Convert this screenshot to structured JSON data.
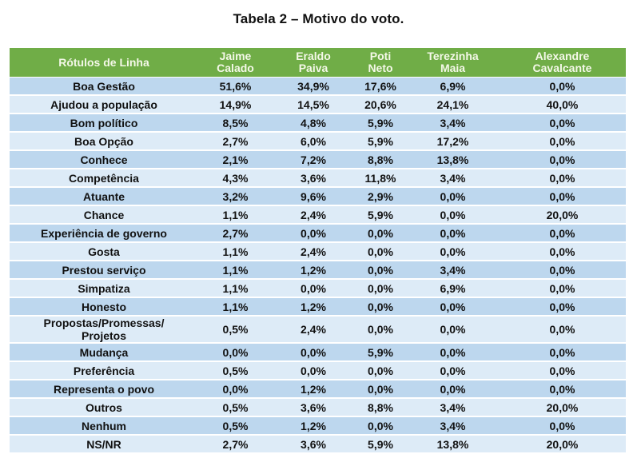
{
  "title": "Tabela 2 – Motivo do voto.",
  "table": {
    "header": {
      "row_label": "Rótulos de Linha",
      "columns": [
        [
          "Jaime",
          "Calado"
        ],
        [
          "Eraldo",
          "Paiva"
        ],
        [
          "Poti",
          "Neto"
        ],
        [
          "Terezinha",
          "Maia"
        ],
        [
          "Alexandre",
          "Cavalcante"
        ]
      ]
    },
    "rows": [
      {
        "label": "Boa Gestão",
        "values": [
          "51,6%",
          "34,9%",
          "17,6%",
          "6,9%",
          "0,0%"
        ]
      },
      {
        "label": "Ajudou a população",
        "values": [
          "14,9%",
          "14,5%",
          "20,6%",
          "24,1%",
          "40,0%"
        ]
      },
      {
        "label": "Bom político",
        "values": [
          "8,5%",
          "4,8%",
          "5,9%",
          "3,4%",
          "0,0%"
        ]
      },
      {
        "label": "Boa Opção",
        "values": [
          "2,7%",
          "6,0%",
          "5,9%",
          "17,2%",
          "0,0%"
        ]
      },
      {
        "label": "Conhece",
        "values": [
          "2,1%",
          "7,2%",
          "8,8%",
          "13,8%",
          "0,0%"
        ]
      },
      {
        "label": "Competência",
        "values": [
          "4,3%",
          "3,6%",
          "11,8%",
          "3,4%",
          "0,0%"
        ]
      },
      {
        "label": "Atuante",
        "values": [
          "3,2%",
          "9,6%",
          "2,9%",
          "0,0%",
          "0,0%"
        ]
      },
      {
        "label": "Chance",
        "values": [
          "1,1%",
          "2,4%",
          "5,9%",
          "0,0%",
          "20,0%"
        ]
      },
      {
        "label": "Experiência de governo",
        "values": [
          "2,7%",
          "0,0%",
          "0,0%",
          "0,0%",
          "0,0%"
        ]
      },
      {
        "label": "Gosta",
        "values": [
          "1,1%",
          "2,4%",
          "0,0%",
          "0,0%",
          "0,0%"
        ]
      },
      {
        "label": "Prestou serviço",
        "values": [
          "1,1%",
          "1,2%",
          "0,0%",
          "3,4%",
          "0,0%"
        ]
      },
      {
        "label": "Simpatiza",
        "values": [
          "1,1%",
          "0,0%",
          "0,0%",
          "6,9%",
          "0,0%"
        ]
      },
      {
        "label": "Honesto",
        "values": [
          "1,1%",
          "1,2%",
          "0,0%",
          "0,0%",
          "0,0%"
        ]
      },
      {
        "label_lines": [
          "Propostas/Promessas/",
          "Projetos"
        ],
        "values": [
          "0,5%",
          "2,4%",
          "0,0%",
          "0,0%",
          "0,0%"
        ]
      },
      {
        "label": "Mudança",
        "values": [
          "0,0%",
          "0,0%",
          "5,9%",
          "0,0%",
          "0,0%"
        ]
      },
      {
        "label": "Preferência",
        "values": [
          "0,5%",
          "0,0%",
          "0,0%",
          "0,0%",
          "0,0%"
        ]
      },
      {
        "label": "Representa o povo",
        "values": [
          "0,0%",
          "1,2%",
          "0,0%",
          "0,0%",
          "0,0%"
        ]
      },
      {
        "label": "Outros",
        "values": [
          "0,5%",
          "3,6%",
          "8,8%",
          "3,4%",
          "20,0%"
        ]
      },
      {
        "label": "Nenhum",
        "values": [
          "0,5%",
          "1,2%",
          "0,0%",
          "3,4%",
          "0,0%"
        ]
      },
      {
        "label": "NS/NR",
        "values": [
          "2,7%",
          "3,6%",
          "5,9%",
          "13,8%",
          "20,0%"
        ]
      }
    ]
  },
  "colors": {
    "header_bg": "#70AD47",
    "header_text": "#F4F8E8",
    "row_dark": "#BDD7EE",
    "row_light": "#DDEBF7",
    "text": "#111111"
  }
}
